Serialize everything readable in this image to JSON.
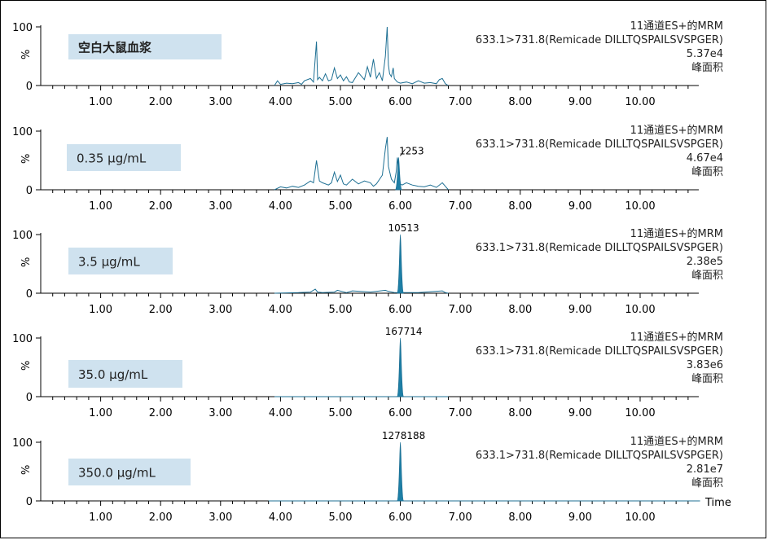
{
  "chart_data": [
    {
      "type": "line",
      "label": "空白大鼠血浆",
      "peak_label": "",
      "channel": "11通道ES+的MRM",
      "transition": "633.1>731.8(Remicade DILLTQSPAILSVSPGER)",
      "intensity": "5.37e4",
      "measure": "峰面积",
      "ylabel": "%",
      "ylim": [
        0,
        100
      ],
      "yticks": [
        "100",
        "0"
      ],
      "xlim": [
        0,
        11
      ],
      "xticks": [
        "1.00",
        "2.00",
        "3.00",
        "4.00",
        "5.00",
        "6.00",
        "7.00",
        "8.00",
        "9.00",
        "10.00"
      ],
      "series": [
        {
          "x": [
            3.9,
            3.95,
            4.0,
            4.1,
            4.2,
            4.3,
            4.35,
            4.4,
            4.5,
            4.55,
            4.6,
            4.62,
            4.65,
            4.7,
            4.75,
            4.8,
            4.85,
            4.9,
            4.95,
            5.0,
            5.05,
            5.1,
            5.15,
            5.2,
            5.3,
            5.4,
            5.45,
            5.5,
            5.55,
            5.6,
            5.65,
            5.7,
            5.75,
            5.78,
            5.8,
            5.82,
            5.85,
            5.88,
            5.9,
            5.95,
            6.0,
            6.1,
            6.2,
            6.3,
            6.4,
            6.5,
            6.6,
            6.65,
            6.7,
            6.75,
            6.8
          ],
          "values": [
            0,
            8,
            2,
            4,
            3,
            5,
            2,
            8,
            12,
            6,
            75,
            10,
            14,
            8,
            20,
            8,
            10,
            30,
            12,
            18,
            8,
            15,
            6,
            5,
            22,
            10,
            32,
            14,
            45,
            12,
            22,
            8,
            50,
            100,
            35,
            20,
            15,
            30,
            12,
            6,
            4,
            6,
            3,
            8,
            4,
            5,
            3,
            10,
            12,
            3,
            0
          ]
        }
      ]
    },
    {
      "type": "line",
      "label": "0.35 μg/mL",
      "peak_label": "1253",
      "channel": "11通道ES+的MRM",
      "transition": "633.1>731.8(Remicade DILLTQSPAILSVSPGER)",
      "intensity": "4.67e4",
      "measure": "峰面积",
      "ylabel": "%",
      "ylim": [
        0,
        100
      ],
      "yticks": [
        "100",
        "0"
      ],
      "xlim": [
        0,
        11
      ],
      "xticks": [
        "1.00",
        "2.00",
        "3.00",
        "4.00",
        "5.00",
        "6.00",
        "7.00",
        "8.00",
        "9.00",
        "10.00"
      ],
      "series": [
        {
          "x": [
            3.9,
            4.0,
            4.1,
            4.2,
            4.3,
            4.4,
            4.5,
            4.55,
            4.6,
            4.65,
            4.7,
            4.8,
            4.85,
            4.9,
            4.95,
            5.0,
            5.05,
            5.1,
            5.2,
            5.3,
            5.4,
            5.5,
            5.55,
            5.6,
            5.7,
            5.75,
            5.78,
            5.8,
            5.85,
            5.9,
            5.93,
            5.95,
            5.97,
            6.0,
            6.03,
            6.1,
            6.2,
            6.3,
            6.4,
            6.5,
            6.6,
            6.7,
            6.75,
            6.8
          ],
          "values": [
            0,
            5,
            3,
            6,
            4,
            8,
            15,
            12,
            50,
            15,
            12,
            8,
            12,
            30,
            14,
            25,
            10,
            8,
            18,
            10,
            15,
            12,
            6,
            10,
            25,
            70,
            90,
            40,
            18,
            12,
            30,
            55,
            30,
            10,
            8,
            12,
            8,
            6,
            5,
            8,
            4,
            12,
            6,
            0
          ]
        }
      ],
      "peak": {
        "center": 5.97,
        "height": 55
      }
    },
    {
      "type": "line",
      "label": "3.5 μg/mL",
      "peak_label": "10513",
      "channel": "11通道ES+的MRM",
      "transition": "633.1>731.8(Remicade DILLTQSPAILSVSPGER)",
      "intensity": "2.38e5",
      "measure": "峰面积",
      "ylabel": "%",
      "ylim": [
        0,
        100
      ],
      "yticks": [
        "100",
        "0"
      ],
      "xlim": [
        0,
        11
      ],
      "xticks": [
        "1.00",
        "2.00",
        "3.00",
        "4.00",
        "5.00",
        "6.00",
        "7.00",
        "8.00",
        "9.00",
        "10.00"
      ],
      "series": [
        {
          "x": [
            3.9,
            4.3,
            4.5,
            4.58,
            4.62,
            4.7,
            4.9,
            4.95,
            5.1,
            5.2,
            5.5,
            5.75,
            5.8,
            5.9,
            6.3,
            6.7,
            6.75,
            6.8
          ],
          "values": [
            0,
            1,
            2,
            7,
            2,
            1,
            2,
            5,
            1,
            4,
            2,
            5,
            3,
            1,
            1,
            4,
            1,
            0
          ]
        }
      ],
      "peak": {
        "center": 6.0,
        "height": 100
      }
    },
    {
      "type": "line",
      "label": "35.0 μg/mL",
      "peak_label": "167714",
      "channel": "11通道ES+的MRM",
      "transition": "633.1>731.8(Remicade DILLTQSPAILSVSPGER)",
      "intensity": "3.83e6",
      "measure": "峰面积",
      "ylabel": "%",
      "ylim": [
        0,
        100
      ],
      "yticks": [
        "100",
        "0"
      ],
      "xlim": [
        0,
        11
      ],
      "xticks": [
        "1.00",
        "2.00",
        "3.00",
        "4.00",
        "5.00",
        "6.00",
        "7.00",
        "8.00",
        "9.00",
        "10.00"
      ],
      "series": [
        {
          "x": [
            3.9,
            6.8
          ],
          "values": [
            0,
            0
          ]
        }
      ],
      "peak": {
        "center": 6.0,
        "height": 100
      }
    },
    {
      "type": "line",
      "label": "350.0 μg/mL",
      "peak_label": "1278188",
      "channel": "11通道ES+的MRM",
      "transition": "633.1>731.8(Remicade DILLTQSPAILSVSPGER)",
      "intensity": "2.81e7",
      "measure": "峰面积",
      "ylabel": "%",
      "ylim": [
        0,
        100
      ],
      "yticks": [
        "100",
        "0"
      ],
      "xlim": [
        0,
        11
      ],
      "xticks": [
        "1.00",
        "2.00",
        "3.00",
        "4.00",
        "5.00",
        "6.00",
        "7.00",
        "8.00",
        "9.00",
        "10.00"
      ],
      "xlabel": "Time",
      "series": [
        {
          "x": [
            3.8,
            11.0
          ],
          "values": [
            0,
            0
          ]
        }
      ],
      "peak": {
        "center": 6.0,
        "height": 100
      }
    }
  ],
  "colors": {
    "line": "#1d6f93",
    "fill": "#1d7fa6",
    "label_box": "#cfe2ef",
    "axis": "#000000"
  }
}
